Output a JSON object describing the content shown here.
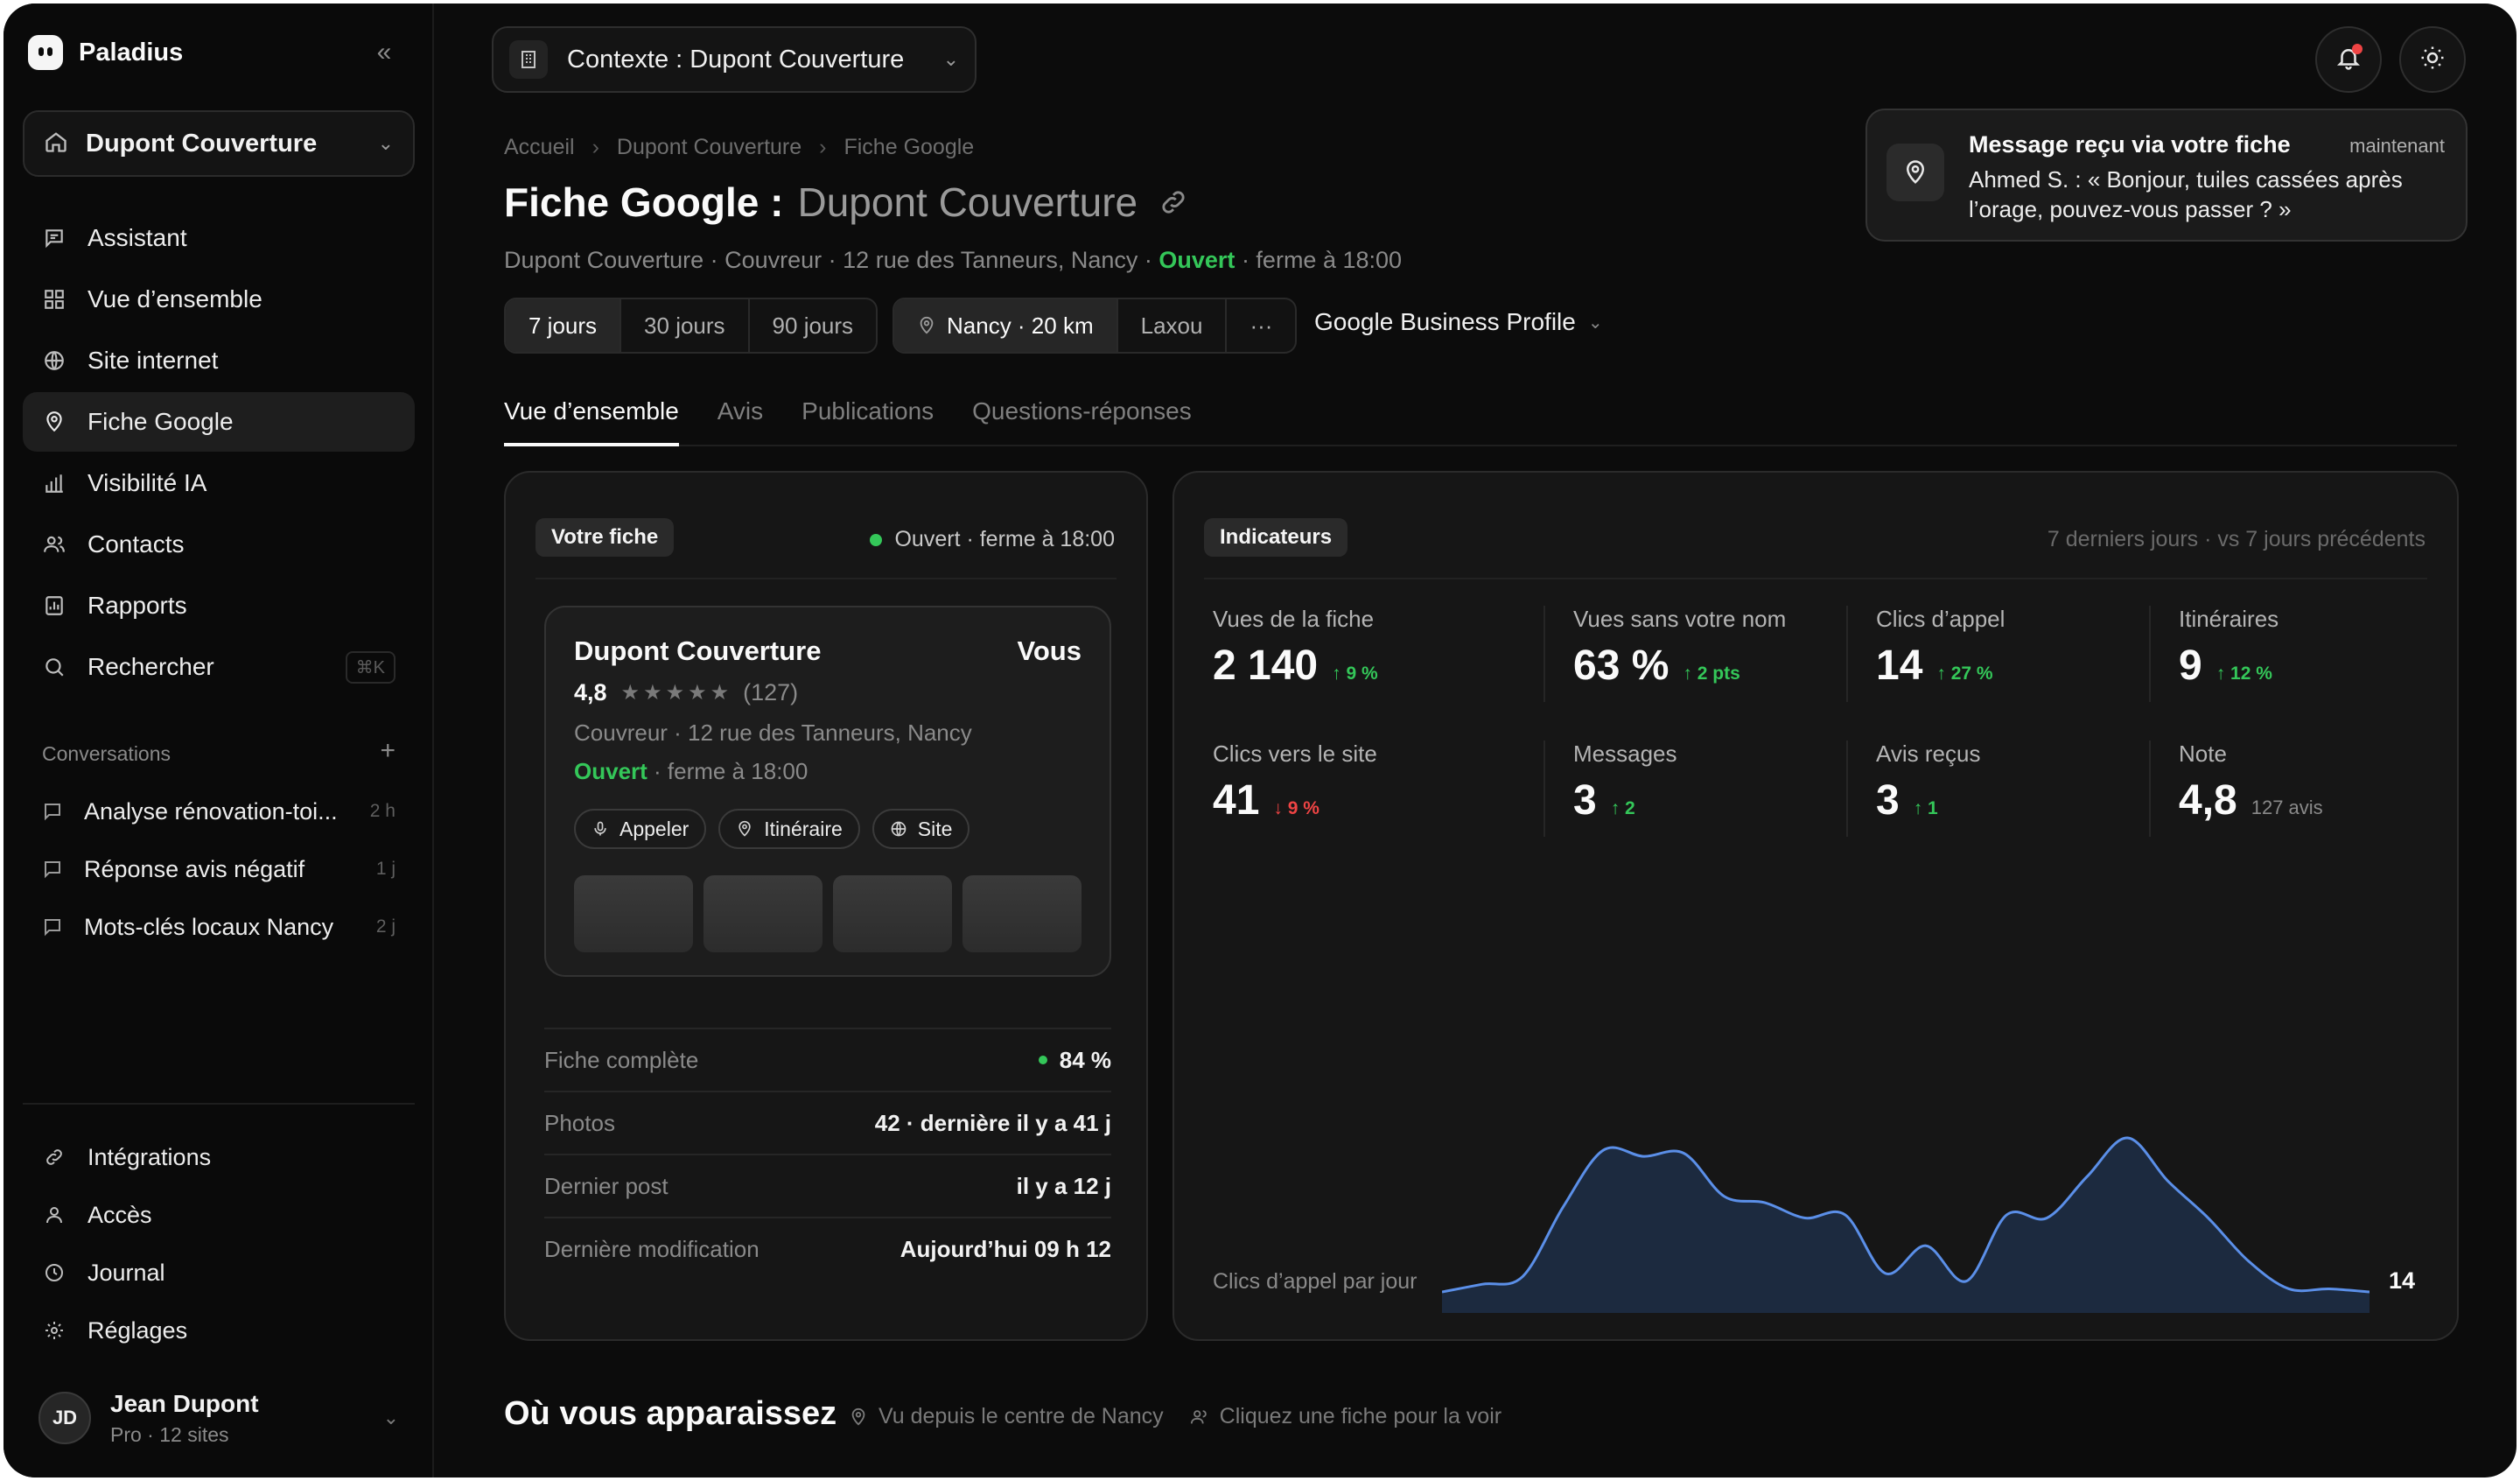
{
  "app": {
    "name": "Paladius"
  },
  "sidebar": {
    "org": "Dupont Couverture",
    "nav": [
      {
        "label": "Assistant",
        "icon": "chat-icon"
      },
      {
        "label": "Vue d’ensemble",
        "icon": "grid-icon"
      },
      {
        "label": "Site internet",
        "icon": "globe-icon"
      },
      {
        "label": "Fiche Google",
        "icon": "pin-icon"
      },
      {
        "label": "Visibilité IA",
        "icon": "bar-chart-icon"
      },
      {
        "label": "Contacts",
        "icon": "users-icon"
      },
      {
        "label": "Rapports",
        "icon": "report-icon"
      },
      {
        "label": "Rechercher",
        "icon": "search-icon",
        "shortcut": "⌘K"
      }
    ],
    "conversations_title": "Conversations",
    "conversations": [
      {
        "title": "Analyse rénovation-toi...",
        "age": "2 h"
      },
      {
        "title": "Réponse avis négatif",
        "age": "1 j"
      },
      {
        "title": "Mots-clés locaux Nancy",
        "age": "2 j"
      }
    ],
    "bottom": [
      {
        "label": "Intégrations",
        "icon": "link-icon"
      },
      {
        "label": "Accès",
        "icon": "user-icon"
      },
      {
        "label": "Journal",
        "icon": "clock-icon"
      },
      {
        "label": "Réglages",
        "icon": "gear-icon"
      }
    ],
    "user": {
      "initials": "JD",
      "name": "Jean Dupont",
      "plan": "Pro · 12 sites"
    }
  },
  "topbar": {
    "context": "Contexte : Dupont Couverture"
  },
  "header": {
    "breadcrumb": [
      "Accueil",
      "Dupont Couverture",
      "Fiche Google"
    ],
    "title": "Fiche Google :",
    "title_sub": "Dupont Couverture",
    "subline_prefix": "Dupont Couverture · Couvreur · 12 rue des Tanneurs, Nancy ·",
    "subline_open": "Ouvert",
    "subline_suffix": "· ferme à 18:00"
  },
  "filters": {
    "periods": [
      "7 jours",
      "30 jours",
      "90 jours"
    ],
    "selected_period": 0,
    "locations": [
      "Nancy · 20 km",
      "Laxou",
      "···"
    ],
    "source": "Google Business Profile"
  },
  "tabs": [
    "Vue d’ensemble",
    "Avis",
    "Publications",
    "Questions-réponses"
  ],
  "listing": {
    "pill": "Votre fiche",
    "status": "Ouvert · ferme à 18:00",
    "preview": {
      "name": "Dupont Couverture",
      "you": "Vous",
      "rating": "4,8",
      "stars": "★★★★★",
      "count": "(127)",
      "address": "Couvreur · 12 rue des Tanneurs, Nancy",
      "open": "Ouvert",
      "hours": " · ferme à 18:00",
      "actions": [
        "Appeler",
        "Itinéraire",
        "Site"
      ]
    },
    "rows": [
      {
        "k": "Fiche complète",
        "v": "84 %"
      },
      {
        "k": "Photos",
        "v": "42 · dernière il y a 41 j"
      },
      {
        "k": "Dernier post",
        "v": "il y a 12 j"
      },
      {
        "k": "Dernière modification",
        "v": "Aujourd’hui 09 h 12"
      }
    ]
  },
  "indicators": {
    "pill": "Indicateurs",
    "period": "7 derniers jours · vs 7 jours précédents",
    "kpis": [
      {
        "label": "Vues de la fiche",
        "value": "2 140",
        "delta": "↑ 9 %",
        "dir": "up"
      },
      {
        "label": "Vues sans votre nom",
        "value": "63 %",
        "delta": "↑ 2 pts",
        "dir": "up"
      },
      {
        "label": "Clics d’appel",
        "value": "14",
        "delta": "↑ 27 %",
        "dir": "up"
      },
      {
        "label": "Itinéraires",
        "value": "9",
        "delta": "↑ 12 %",
        "dir": "up"
      },
      {
        "label": "Clics vers le site",
        "value": "41",
        "delta": "↓ 9 %",
        "dir": "down"
      },
      {
        "label": "Messages",
        "value": "3",
        "delta": "↑ 2",
        "dir": "up"
      },
      {
        "label": "Avis reçus",
        "value": "3",
        "delta": "↑ 1",
        "dir": "up"
      },
      {
        "label": "Note",
        "value": "4,8",
        "delta": "127 avis",
        "dir": "none"
      }
    ],
    "chart_label": "Clics d’appel par jour",
    "chart_last": "14"
  },
  "chart_data": {
    "type": "area",
    "title": "Clics d’appel par jour",
    "y": [
      0.0,
      0.05,
      0.1,
      0.55,
      0.92,
      0.88,
      0.9,
      0.62,
      0.58,
      0.48,
      0.5,
      0.12,
      0.3,
      0.07,
      0.5,
      0.48,
      0.75,
      1.0,
      0.72,
      0.48,
      0.2,
      0.02,
      0.02,
      0.0
    ],
    "last_value": "14",
    "colors": {
      "line": "#5b8fe8",
      "fill": "#1c2a3f"
    }
  },
  "toast": {
    "title": "Message reçu via votre fiche",
    "time": "maintenant",
    "message": "Ahmed S. : « Bonjour, tuiles cassées après l’orage, pouvez-vous passer ? »"
  },
  "where": {
    "title": "Où vous apparaissez",
    "meta1": "Vu depuis le centre de Nancy",
    "meta2": "Cliquez une fiche pour la voir"
  }
}
